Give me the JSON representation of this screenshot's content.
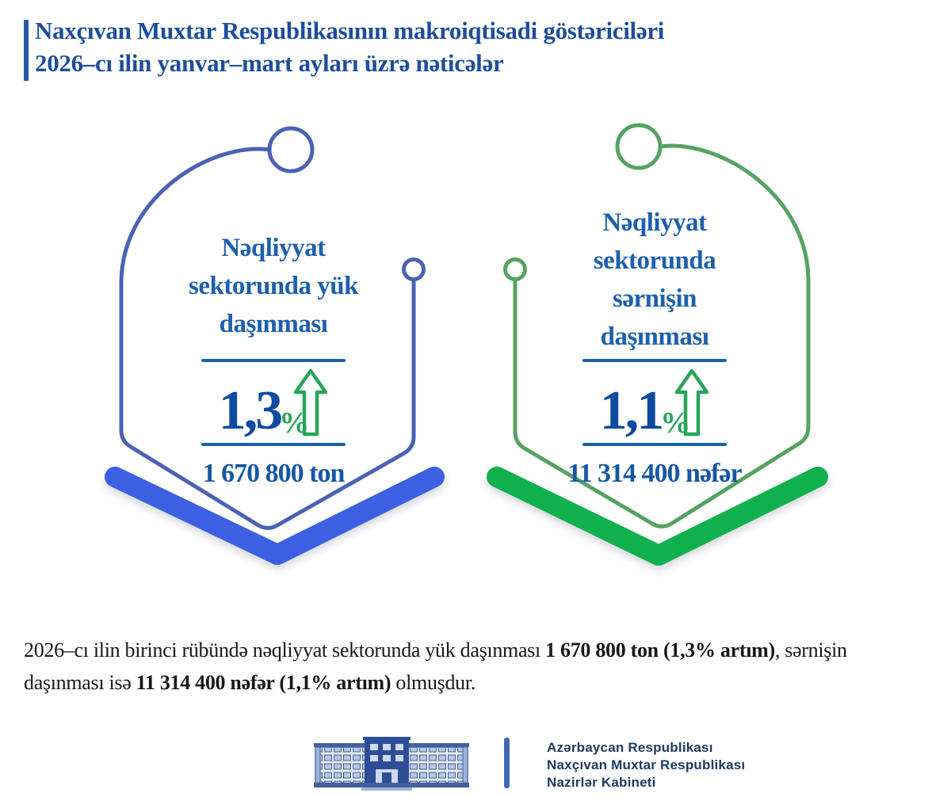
{
  "header": {
    "line1": "Naxçıvan Muxtar Respublikasının makroiqtisadi göstəriciləri",
    "line2": "2026–cı ilin yanvar–mart ayları üzrə nəticələr"
  },
  "cards": [
    {
      "id": "cargo",
      "title_lines": [
        "Nəqliyyat",
        "sektorunda yük",
        "daşınması"
      ],
      "percent": "1,3",
      "percent_sign": "%",
      "value": "1 670 800 ton",
      "trend": "increase",
      "outline_color": "#4a62b5",
      "chevron_color": "#3c60e1"
    },
    {
      "id": "passenger",
      "title_lines": [
        "Nəqliyyat",
        "sektorunda",
        "sərnişin",
        "daşınması"
      ],
      "percent": "1,1",
      "percent_sign": "%",
      "value": "11 314 400 nəfər",
      "trend": "increase",
      "outline_color": "#55a360",
      "chevron_color": "#10b04d"
    }
  ],
  "paragraph": {
    "segments": [
      {
        "text": "2026–cı ilin birinci rübündə nəqliyyat sektorunda yük daşınması ",
        "bold": false
      },
      {
        "text": "1 670 800 ton (1,3% artım)",
        "bold": true
      },
      {
        "text": ", sərnişin",
        "bold": false
      },
      {
        "br": true
      },
      {
        "text": "daşınması isə ",
        "bold": false
      },
      {
        "text": "11 314 400 nəfər (1,1% artım)",
        "bold": true
      },
      {
        "text": " olmuşdur.",
        "bold": false
      }
    ]
  },
  "footer": {
    "logo_icon": "government-building-icon",
    "lines": [
      "Azərbaycan Respublikası",
      "Naxçıvan Muxtar Respublikası",
      "Nazirlər Kabineti"
    ]
  },
  "colors": {
    "header_navy": "#1d4d9c",
    "header_accent_bar": "#2b57a7",
    "card_title_blue": "#1c60ae",
    "number_blue": "#0d4ba0",
    "rule_blue": "#1761a8",
    "value_blue": "#1657a5",
    "trend_green": "#27a558",
    "outline_blue": "#4a62b5",
    "chevron_blue": "#3c60e1",
    "outline_green": "#55a360",
    "chevron_green": "#10b04d",
    "footer_navy": "#1e3a63",
    "footer_divider_blue": "#3e68b4",
    "background": "#ffffff"
  }
}
